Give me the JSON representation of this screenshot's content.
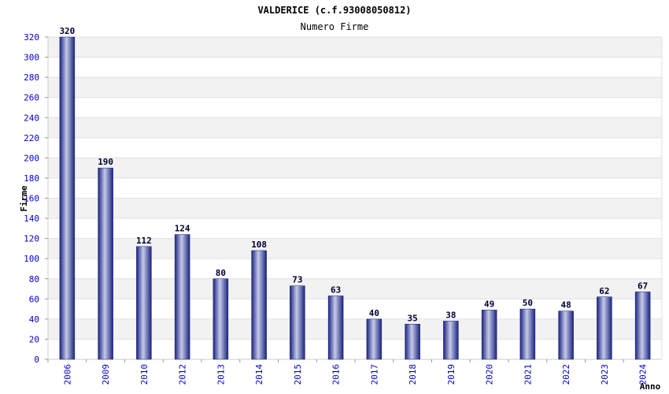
{
  "chart_data": {
    "type": "bar",
    "title": "VALDERICE (c.f.93008050812)",
    "subtitle": "Numero Firme",
    "xlabel": "Anno",
    "ylabel": "Firme",
    "categories": [
      "2006",
      "2009",
      "2010",
      "2012",
      "2013",
      "2014",
      "2015",
      "2016",
      "2017",
      "2018",
      "2019",
      "2020",
      "2021",
      "2022",
      "2023",
      "2024"
    ],
    "values": [
      320,
      190,
      112,
      124,
      80,
      108,
      73,
      63,
      40,
      35,
      38,
      49,
      50,
      48,
      62,
      67
    ],
    "ylim": [
      0,
      320
    ],
    "yticks": [
      0,
      20,
      40,
      60,
      80,
      100,
      120,
      140,
      160,
      180,
      200,
      220,
      240,
      260,
      280,
      300,
      320
    ],
    "grid": true,
    "bar_color": "#1a237e",
    "band_color": "#f2f2f2",
    "label_color": "#000033",
    "tick_color": "#0000cc"
  }
}
